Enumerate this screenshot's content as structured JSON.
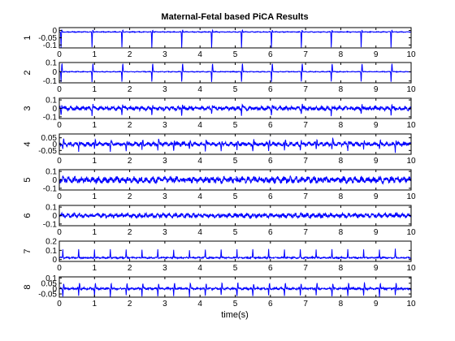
{
  "figure": {
    "title": "Maternal-Fetal based PiCA Results",
    "xlabel": "time(s)"
  },
  "chart_data": {
    "type": "line",
    "title": "Maternal-Fetal based PiCA Results",
    "xlabel": "time(s)",
    "xlim": [
      0,
      10
    ],
    "xticks": [
      "0",
      "1",
      "2",
      "3",
      "4",
      "5",
      "6",
      "7",
      "8",
      "9",
      "10"
    ],
    "line_color": "#0000ff",
    "grid": false,
    "subplots": [
      {
        "ylabel": "1",
        "ylim": [
          -0.12,
          0.02
        ],
        "yticks": [
          {
            "v": -0.1,
            "label": "-0.1"
          },
          {
            "v": -0.05,
            "label": "-0.05"
          },
          {
            "v": 0,
            "label": "0"
          }
        ],
        "baseline": -0.01,
        "noise": 0.002,
        "pattern": "maternal",
        "peaks": [
          0.05,
          0.93,
          1.78,
          2.63,
          3.48,
          4.33,
          5.18,
          6.03,
          6.88,
          7.73,
          8.58,
          9.43
        ],
        "peak_amp": -0.11,
        "side_amp": 0.012
      },
      {
        "ylabel": "2",
        "ylim": [
          -0.12,
          0.1
        ],
        "yticks": [
          {
            "v": -0.1,
            "label": "-0.1"
          },
          {
            "v": 0,
            "label": "0"
          },
          {
            "v": 0.1,
            "label": "0.1"
          }
        ],
        "baseline": 0.0,
        "noise": 0.003,
        "pattern": "maternal",
        "peaks": [
          0.05,
          0.93,
          1.78,
          2.63,
          3.48,
          4.33,
          5.18,
          6.03,
          6.88,
          7.73,
          8.58,
          9.43
        ],
        "peak_amp": -0.11,
        "side_amp": 0.09
      },
      {
        "ylabel": "3",
        "ylim": [
          -0.12,
          0.12
        ],
        "yticks": [
          {
            "v": -0.1,
            "label": "-0.1"
          },
          {
            "v": 0,
            "label": "0"
          },
          {
            "v": 0.1,
            "label": "0.1"
          }
        ],
        "baseline": 0.0,
        "noise": 0.018,
        "pattern": "noise",
        "peaks": [
          0.05,
          0.93,
          1.78,
          2.63,
          3.48,
          4.33,
          5.18,
          6.03,
          6.88,
          7.73,
          8.58,
          9.43
        ],
        "peak_amp": -0.07,
        "side_amp": 0.04
      },
      {
        "ylabel": "4",
        "ylim": [
          -0.08,
          0.08
        ],
        "yticks": [
          {
            "v": -0.05,
            "label": "-0.05"
          },
          {
            "v": 0,
            "label": "0"
          },
          {
            "v": 0.05,
            "label": "0.05"
          }
        ],
        "baseline": 0.0,
        "noise": 0.012,
        "pattern": "fetal",
        "peaks": [
          0.1,
          0.55,
          1.0,
          1.45,
          1.9,
          2.35,
          2.8,
          3.25,
          3.7,
          4.15,
          4.6,
          5.05,
          5.5,
          5.95,
          6.4,
          6.85,
          7.3,
          7.75,
          8.2,
          8.65,
          9.1,
          9.55
        ],
        "peak_amp": -0.05,
        "side_amp": 0.03
      },
      {
        "ylabel": "5",
        "ylim": [
          -0.12,
          0.12
        ],
        "yticks": [
          {
            "v": -0.1,
            "label": "-0.1"
          },
          {
            "v": 0,
            "label": "0"
          },
          {
            "v": 0.1,
            "label": "0.1"
          }
        ],
        "baseline": 0.0,
        "noise": 0.028,
        "pattern": "noise",
        "peaks": [],
        "peak_amp": 0,
        "side_amp": 0
      },
      {
        "ylabel": "6",
        "ylim": [
          -0.12,
          0.12
        ],
        "yticks": [
          {
            "v": -0.1,
            "label": "-0.1"
          },
          {
            "v": 0,
            "label": "0"
          },
          {
            "v": 0.1,
            "label": "0.1"
          }
        ],
        "baseline": 0.0,
        "noise": 0.02,
        "pattern": "noise",
        "peaks": [],
        "peak_amp": 0,
        "side_amp": 0
      },
      {
        "ylabel": "7",
        "ylim": [
          -0.02,
          0.2
        ],
        "yticks": [
          {
            "v": 0,
            "label": "0"
          },
          {
            "v": 0.1,
            "label": "0.1"
          },
          {
            "v": 0.2,
            "label": "0.2"
          }
        ],
        "baseline": 0.02,
        "noise": 0.006,
        "pattern": "fetal",
        "peaks": [
          0.1,
          0.55,
          1.0,
          1.45,
          1.9,
          2.35,
          2.8,
          3.25,
          3.7,
          4.15,
          4.6,
          5.05,
          5.5,
          5.95,
          6.4,
          6.85,
          7.3,
          7.75,
          8.2,
          8.65,
          9.1,
          9.55
        ],
        "peak_amp": 0.09,
        "side_amp": 0.0
      },
      {
        "ylabel": "8",
        "ylim": [
          -0.08,
          0.11
        ],
        "yticks": [
          {
            "v": -0.05,
            "label": "-0.05"
          },
          {
            "v": 0,
            "label": "0"
          },
          {
            "v": 0.05,
            "label": "0.05"
          },
          {
            "v": 0.1,
            "label": "0.1"
          }
        ],
        "baseline": 0.0,
        "noise": 0.007,
        "pattern": "fetal",
        "peaks": [
          0.1,
          0.55,
          1.0,
          1.45,
          1.9,
          2.35,
          2.8,
          3.25,
          3.7,
          4.15,
          4.6,
          5.05,
          5.5,
          5.95,
          6.4,
          6.85,
          7.3,
          7.75,
          8.2,
          8.65,
          9.1,
          9.55
        ],
        "peak_amp": -0.07,
        "side_amp": 0.05
      }
    ]
  }
}
